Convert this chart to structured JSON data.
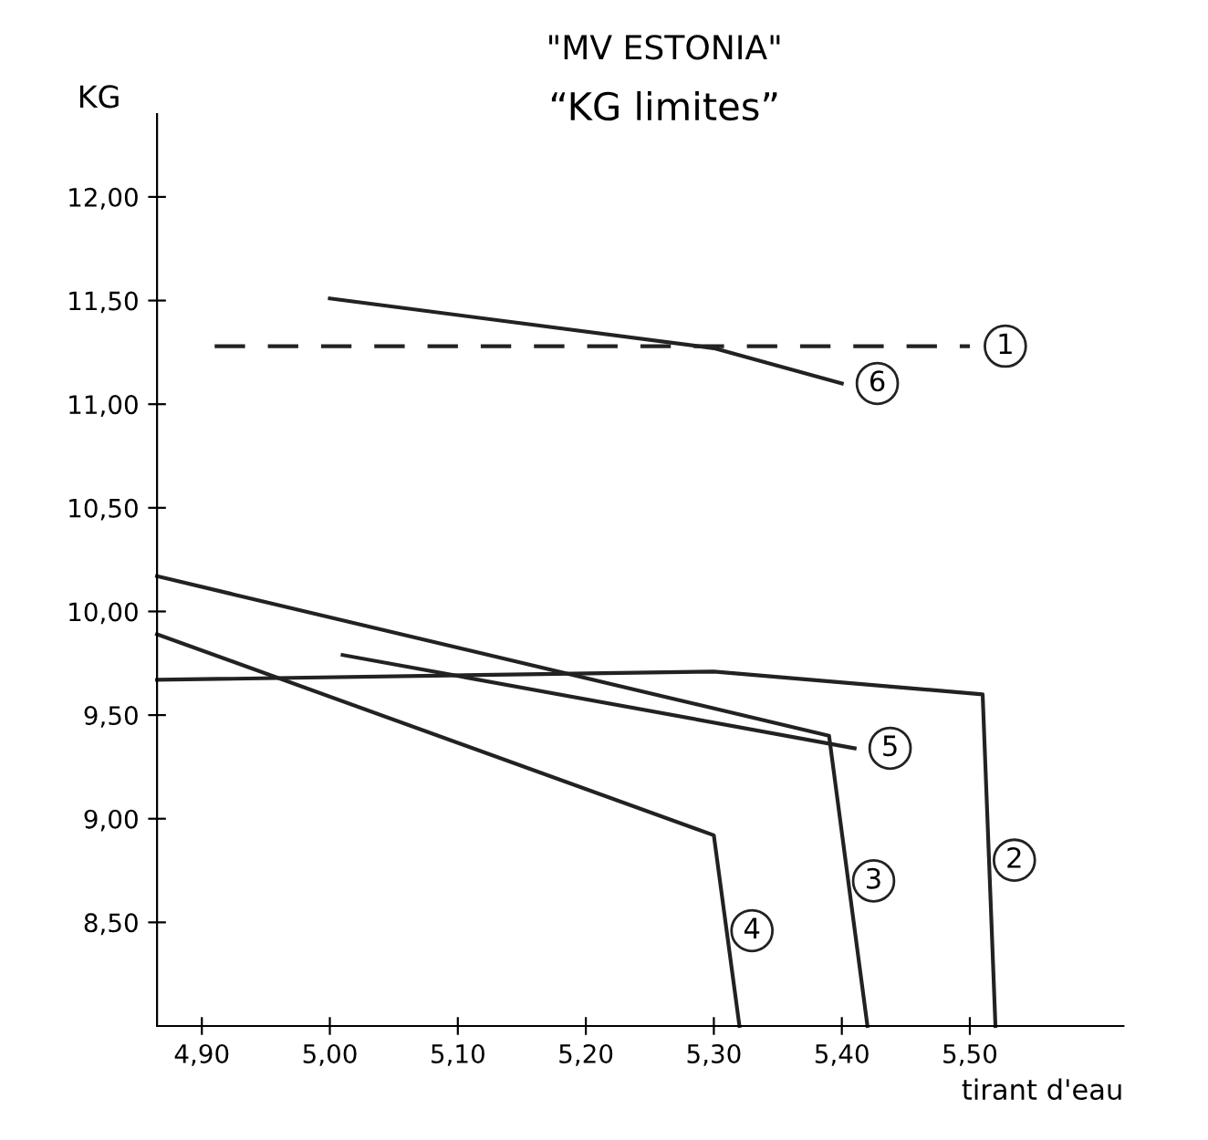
{
  "chart_data": {
    "type": "line",
    "title": "\"MV ESTONIA\"",
    "subtitle": "“KG limites”",
    "xlabel": "tirant d'eau",
    "ylabel": "KG",
    "xlim": [
      4.865,
      5.62
    ],
    "ylim": [
      8.0,
      12.4
    ],
    "xticks": [
      {
        "value": 4.9,
        "label": "4,90"
      },
      {
        "value": 5.0,
        "label": "5,00"
      },
      {
        "value": 5.1,
        "label": "5,10"
      },
      {
        "value": 5.2,
        "label": "5,20"
      },
      {
        "value": 5.3,
        "label": "5,30"
      },
      {
        "value": 5.4,
        "label": "5,40"
      },
      {
        "value": 5.5,
        "label": "5,50"
      }
    ],
    "yticks": [
      {
        "value": 8.5,
        "label": "8,50"
      },
      {
        "value": 9.0,
        "label": "9,00"
      },
      {
        "value": 9.5,
        "label": "9,50"
      },
      {
        "value": 10.0,
        "label": "10,00"
      },
      {
        "value": 10.5,
        "label": "10,50"
      },
      {
        "value": 11.0,
        "label": "11,00"
      },
      {
        "value": 11.5,
        "label": "11,50"
      },
      {
        "value": 12.0,
        "label": "12,00"
      }
    ],
    "grid": false,
    "marker": "none",
    "series": [
      {
        "name": "1",
        "color": "#222222",
        "line_style": "dashed",
        "x": [
          4.91,
          5.5
        ],
        "values": [
          11.28,
          11.28
        ]
      },
      {
        "name": "2",
        "color": "#222222",
        "x": [
          4.865,
          5.3,
          5.51,
          5.52
        ],
        "values": [
          9.67,
          9.71,
          9.6,
          8.0
        ]
      },
      {
        "name": "3",
        "color": "#222222",
        "x": [
          4.865,
          5.39,
          5.42
        ],
        "values": [
          10.17,
          9.4,
          8.0
        ]
      },
      {
        "name": "4",
        "color": "#222222",
        "x": [
          4.865,
          5.3,
          5.32
        ],
        "values": [
          9.89,
          8.92,
          8.0
        ]
      },
      {
        "name": "5",
        "color": "#222222",
        "x": [
          5.01,
          5.41
        ],
        "values": [
          9.79,
          9.34
        ]
      },
      {
        "name": "6",
        "color": "#222222",
        "x": [
          5.0,
          5.3,
          5.4
        ],
        "values": [
          11.51,
          11.27,
          11.1
        ]
      }
    ]
  }
}
